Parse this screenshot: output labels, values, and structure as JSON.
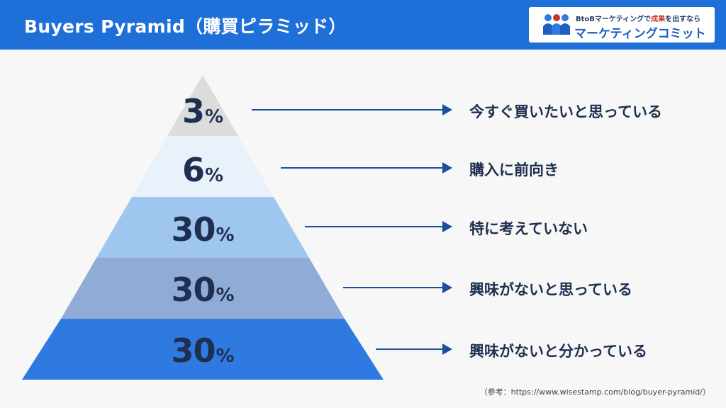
{
  "header": {
    "title": "Buyers Pyramid（購買ピラミッド）",
    "background_color": "#1f6fd9"
  },
  "logo": {
    "tagline_prefix": "BtoBマーケティングで",
    "tagline_highlight": "成果",
    "tagline_suffix": "を出すなら",
    "name": "マーケティングコミット",
    "brand_color": "#1f5fbf"
  },
  "pyramid": {
    "arrow_color": "#1a4f9c",
    "tiers": [
      {
        "percent": "3",
        "unit": "%",
        "label": "今すぐ買いたいと思っている",
        "color": "#dcdcdc"
      },
      {
        "percent": "6",
        "unit": "%",
        "label": "購入に前向き",
        "color": "#e9f1fb"
      },
      {
        "percent": "30",
        "unit": "%",
        "label": "特に考えていない",
        "color": "#9fc6ef"
      },
      {
        "percent": "30",
        "unit": "%",
        "label": "興味がないと思っている",
        "color": "#90acd6"
      },
      {
        "percent": "30",
        "unit": "%",
        "label": "興味がないと分かっている",
        "color": "#2f7ae0"
      }
    ]
  },
  "source": "（参考：https://www.wisestamp.com/blog/buyer-pyramid/）"
}
